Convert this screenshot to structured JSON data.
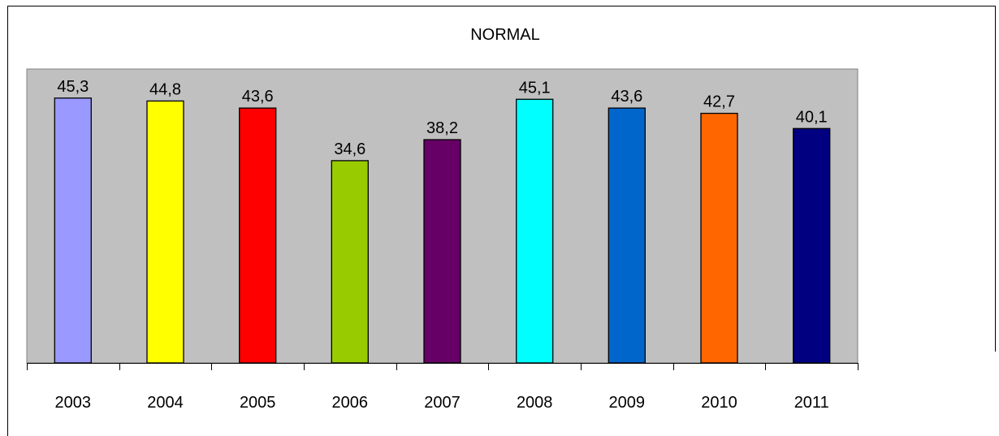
{
  "chart_data": {
    "type": "bar",
    "title": "NORMAL",
    "xlabel": "",
    "ylabel": "",
    "categories": [
      "2003",
      "2004",
      "2005",
      "2006",
      "2007",
      "2008",
      "2009",
      "2010",
      "2011"
    ],
    "values": [
      45.3,
      44.8,
      43.6,
      34.6,
      38.2,
      45.1,
      43.6,
      42.7,
      40.1
    ],
    "value_labels": [
      "45,3",
      "44,8",
      "43,6",
      "34,6",
      "38,2",
      "45,1",
      "43,6",
      "42,7",
      "40,1"
    ],
    "bar_colors": [
      "#9999FF",
      "#FFFF00",
      "#FF0000",
      "#99CC00",
      "#660066",
      "#00FFFF",
      "#0066CC",
      "#FF6600",
      "#000080"
    ],
    "ylim": [
      0,
      50
    ],
    "grid": false,
    "legend": "none",
    "plot_background": "#C0C0C0"
  }
}
